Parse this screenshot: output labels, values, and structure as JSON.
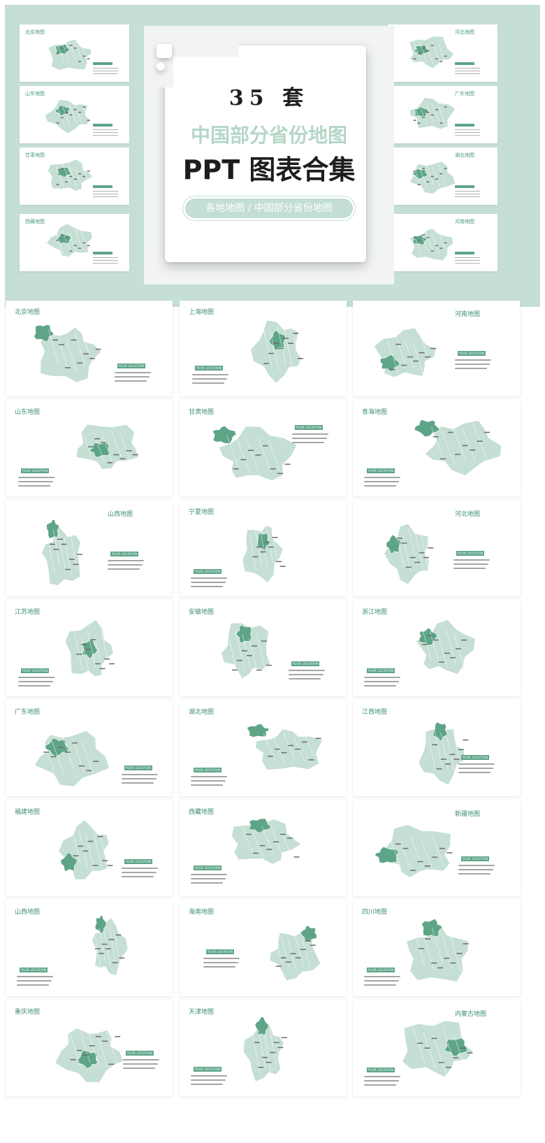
{
  "hero": {
    "count": "35 套",
    "subtitle": "中国部分省份地图",
    "main_title": "PPT 图表合集",
    "pill": "各地地图 / 中国部分省份地图"
  },
  "colors": {
    "light": "#c6dfd5",
    "dark": "#5ea588",
    "accent": "#3f8f72"
  },
  "hero_thumbs": [
    {
      "title": "北京地图"
    },
    {
      "title": "山东地图"
    },
    {
      "title": "甘肃地图"
    },
    {
      "title": "西藏地图"
    },
    {
      "title": "河北地图"
    },
    {
      "title": "广东地图"
    },
    {
      "title": "湖北地图"
    },
    {
      "title": "河南地图"
    }
  ],
  "cards": [
    {
      "title": "北京地图"
    },
    {
      "title": "上海地图"
    },
    {
      "title": "河南地图"
    },
    {
      "title": "山东地图"
    },
    {
      "title": "甘肃地图"
    },
    {
      "title": "青海地图"
    },
    {
      "title": "山西地图"
    },
    {
      "title": "宁夏地图"
    },
    {
      "title": "河北地图"
    },
    {
      "title": "江苏地图"
    },
    {
      "title": "安徽地图"
    },
    {
      "title": "浙江地图"
    },
    {
      "title": "广东地图"
    },
    {
      "title": "湖北地图"
    },
    {
      "title": "江西地图"
    },
    {
      "title": "福建地图"
    },
    {
      "title": "西藏地图"
    },
    {
      "title": "新疆地图"
    },
    {
      "title": "山西地图"
    },
    {
      "title": "海南地图"
    },
    {
      "title": "四川地图"
    },
    {
      "title": "重庆地图"
    },
    {
      "title": "天津地图"
    },
    {
      "title": "内蒙古地图"
    }
  ],
  "location_label": "YOUR LOCATION"
}
